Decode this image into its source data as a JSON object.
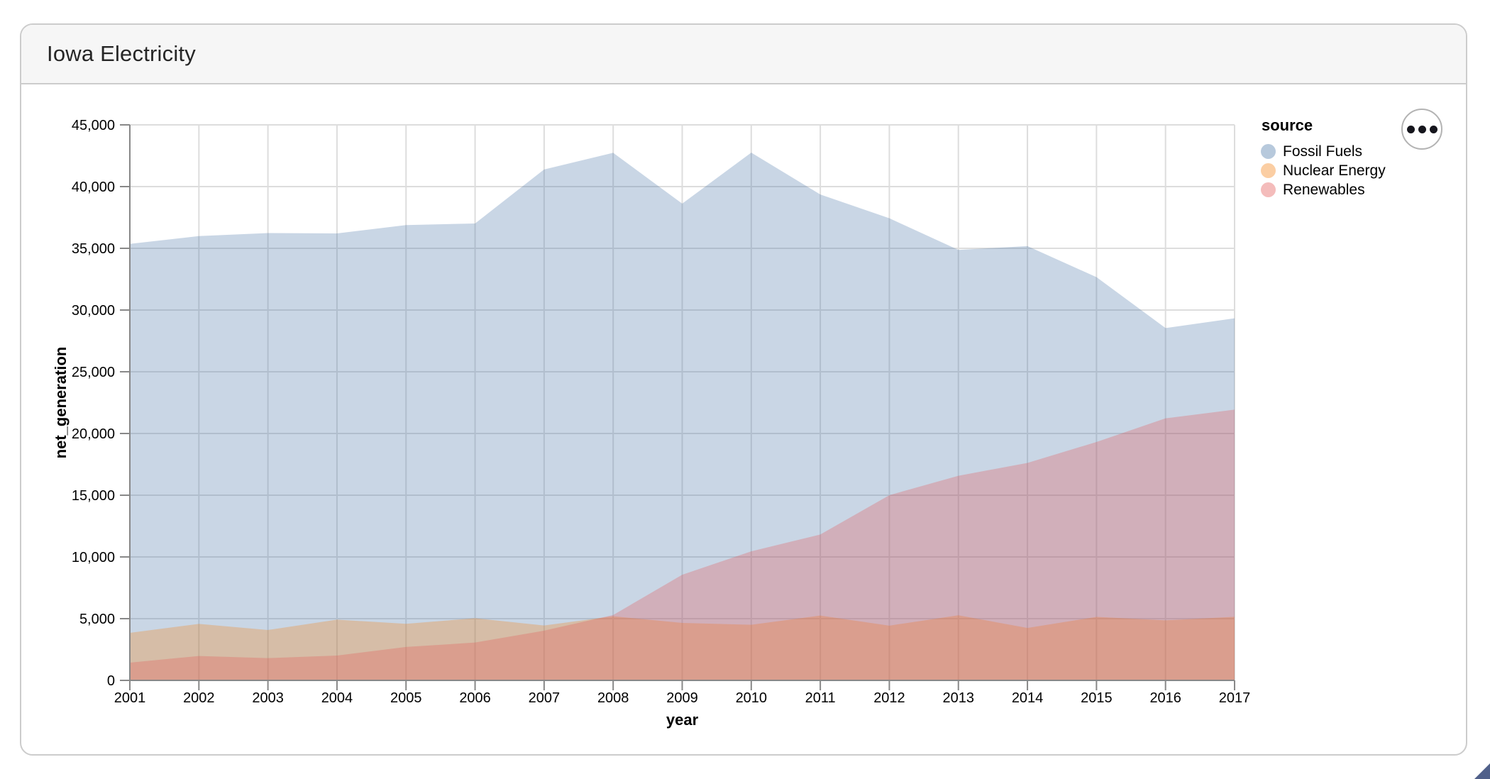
{
  "header": {
    "title": "Iowa Electricity"
  },
  "chart_data": {
    "type": "area",
    "stacked": false,
    "mark_opacity": 0.3,
    "title": "Iowa Electricity",
    "xlabel": "year",
    "ylabel": "net_generation",
    "ylim": [
      0,
      45000
    ],
    "grid": true,
    "x": [
      2001,
      2002,
      2003,
      2004,
      2005,
      2006,
      2007,
      2008,
      2009,
      2010,
      2011,
      2012,
      2013,
      2014,
      2015,
      2016,
      2017
    ],
    "x_tick_labels": [
      "2001",
      "2002",
      "2003",
      "2004",
      "2005",
      "2006",
      "2007",
      "2008",
      "2009",
      "2010",
      "2011",
      "2012",
      "2013",
      "2014",
      "2015",
      "2016",
      "2017"
    ],
    "y_tick_values": [
      0,
      5000,
      10000,
      15000,
      20000,
      25000,
      30000,
      35000,
      40000,
      45000
    ],
    "y_tick_labels": [
      "0",
      "5,000",
      "10,000",
      "15,000",
      "20,000",
      "25,000",
      "30,000",
      "35,000",
      "40,000",
      "45,000"
    ],
    "legend": {
      "title": "source",
      "position": "right"
    },
    "series": [
      {
        "name": "Fossil Fuels",
        "color": "#4c78a8",
        "values": [
          35361,
          35991,
          36234,
          36205,
          36883,
          37014,
          41389,
          42734,
          38620,
          42750,
          39361,
          37434,
          34873,
          35177,
          32667,
          28540,
          29329
        ]
      },
      {
        "name": "Nuclear Energy",
        "color": "#f58518",
        "values": [
          3853,
          4574,
          4083,
          4919,
          4582,
          5036,
          4448,
          5193,
          4656,
          4507,
          5251,
          4436,
          5273,
          4246,
          5141,
          4862,
          5152
        ]
      },
      {
        "name": "Renewables",
        "color": "#e45756",
        "values": [
          1437,
          1978,
          1806,
          2013,
          2706,
          3064,
          4029,
          5294,
          8558,
          10456,
          11817,
          15003,
          16573,
          17618,
          19312,
          21225,
          21933
        ]
      }
    ]
  },
  "action_button": {
    "icon": "ellipsis"
  },
  "style_colors": {
    "grid": "#dddddd",
    "axis_domain": "#888888",
    "tick": "#888888",
    "card_border": "#cccccc",
    "header_bg": "#f6f6f6"
  }
}
